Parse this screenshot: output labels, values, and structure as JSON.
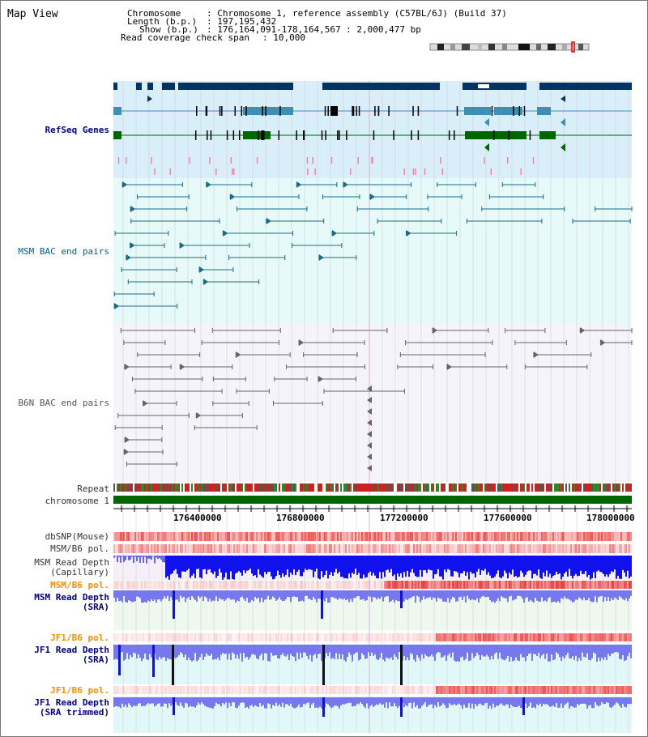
{
  "page_title": "Map View",
  "header": {
    "chromosome_key": "Chromosome",
    "chromosome_value": ": Chromosome 1, reference assembly (C57BL/6J) (Build 37)",
    "length_key": "Length (b.p.)",
    "length_value": ": 197,195,432",
    "show_key": "Show (b.p.)",
    "show_value": ": 176,164,091-178,164,567 : 2,000,477 bp",
    "coverage_key": "Read coverage check span",
    "coverage_value": ": 10,000"
  },
  "tracks": {
    "refseq": "RefSeq Genes",
    "msm_bac": "MSM BAC end pairs",
    "b6n_bac": "B6N BAC end pairs",
    "repeat": "Repeat",
    "chromosome": "chromosome 1",
    "dbsnp": "dbSNP(Mouse)",
    "msm_b6_pol_1": "MSM/B6 pol.",
    "msm_depth_cap_1": "MSM Read Depth",
    "msm_depth_cap_2": "(Capillary)",
    "msm_b6_pol_2": "MSM/B6 pol.",
    "msm_depth_sra_1": "MSM Read Depth",
    "msm_depth_sra_2": "(SRA)",
    "jf1_b6_pol_1": "JF1/B6 pol.",
    "jf1_depth_sra_1": "JF1 Read Depth",
    "jf1_depth_sra_2": "(SRA)",
    "jf1_b6_pol_2": "JF1/B6 pol.",
    "jf1_depth_trim_1": "JF1 Read Depth",
    "jf1_depth_trim_2": "(SRA trimmed)"
  },
  "axis": {
    "ticks": [
      "176400000",
      "176800000",
      "177200000",
      "177600000",
      "178000000"
    ]
  },
  "colors": {
    "refseq_bg": "#daeef9",
    "msm_bg": "#e6fafa",
    "b6n_bg": "#f4f4fa",
    "gene_dark": "#003366",
    "gene_teal": "#3d8fb3",
    "gene_green": "#006600",
    "bac_teal": "#1a6b85",
    "bac_gray": "#666666",
    "chrom_green": "#006600",
    "depth_blue": "#1111dd",
    "depth_light": "#7777ee"
  }
}
